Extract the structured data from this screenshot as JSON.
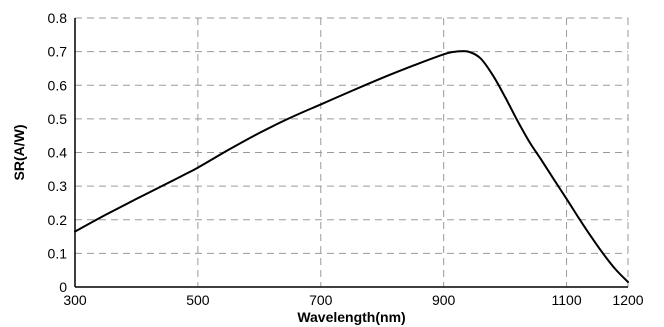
{
  "chart_data": {
    "type": "line",
    "title": "",
    "xlabel": "Wavelength(nm)",
    "ylabel": "SR(A/W)",
    "xlim": [
      300,
      1200
    ],
    "ylim": [
      0,
      0.8
    ],
    "x_ticks": [
      300,
      500,
      700,
      900,
      1100,
      1200
    ],
    "y_ticks": [
      0,
      0.1,
      0.2,
      0.3,
      0.4,
      0.5,
      0.6,
      0.7,
      0.8
    ],
    "x_tick_labels": [
      "300",
      "500",
      "700",
      "900",
      "1100",
      "1200"
    ],
    "y_tick_labels": [
      "0",
      "0.1",
      "0.2",
      "0.3",
      "0.4",
      "0.5",
      "0.6",
      "0.7",
      "0.8"
    ],
    "grid": true,
    "grid_style": "dashed",
    "series": [
      {
        "color": "#000000",
        "x": [
          300,
          350,
          400,
          450,
          480,
          500,
          550,
          600,
          650,
          700,
          750,
          800,
          850,
          900,
          920,
          940,
          960,
          980,
          1000,
          1020,
          1040,
          1060,
          1080,
          1100,
          1120,
          1140,
          1160,
          1180,
          1200,
          1220
        ],
        "y": [
          0.165,
          0.215,
          0.262,
          0.308,
          0.336,
          0.355,
          0.408,
          0.458,
          0.503,
          0.543,
          0.583,
          0.622,
          0.658,
          0.692,
          0.7,
          0.7,
          0.68,
          0.63,
          0.565,
          0.495,
          0.43,
          0.375,
          0.318,
          0.262,
          0.205,
          0.15,
          0.098,
          0.052,
          0.015,
          0.0
        ]
      }
    ]
  }
}
